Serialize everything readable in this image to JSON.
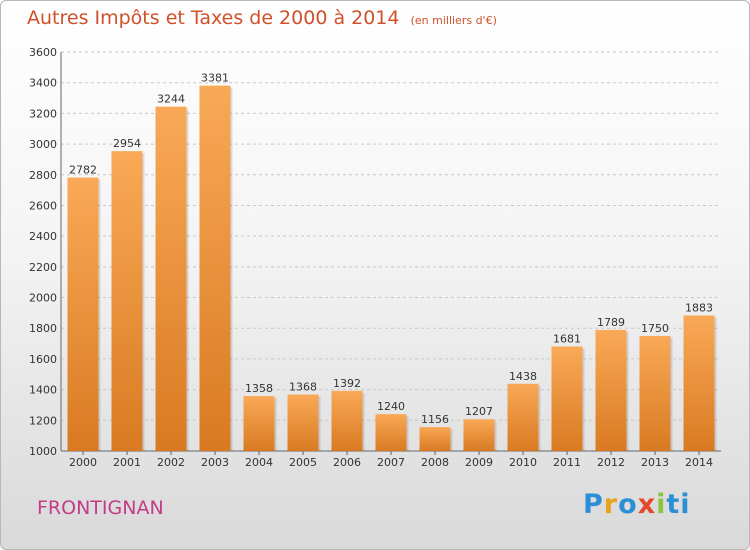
{
  "title": "Autres Impôts et Taxes de 2000 à 2014",
  "unit_label": "(en milliers d'€)",
  "town": "FRONTIGNAN",
  "logo": {
    "text": "Proxiti",
    "letters": [
      "P",
      "r",
      "o",
      "x",
      "i",
      "ti"
    ]
  },
  "colors": {
    "bar_light": "#f9a957",
    "bar_dark": "#d97a22",
    "title": "#d0502a",
    "town": "#c23c8a"
  },
  "chart_data": {
    "type": "bar",
    "title": "Autres Impôts et Taxes de 2000 à 2014",
    "xlabel": "",
    "ylabel": "",
    "categories": [
      "2000",
      "2001",
      "2002",
      "2003",
      "2004",
      "2005",
      "2006",
      "2007",
      "2008",
      "2009",
      "2010",
      "2011",
      "2012",
      "2013",
      "2014"
    ],
    "values": [
      2782,
      2954,
      3244,
      3381,
      1358,
      1368,
      1392,
      1240,
      1156,
      1207,
      1438,
      1681,
      1789,
      1750,
      1883
    ],
    "ylim": [
      1000,
      3600
    ],
    "yticks": [
      1000,
      1200,
      1400,
      1600,
      1800,
      2000,
      2200,
      2400,
      2600,
      2800,
      3000,
      3200,
      3400,
      3600
    ],
    "grid": "horizontal-dashed",
    "legend": "none"
  }
}
